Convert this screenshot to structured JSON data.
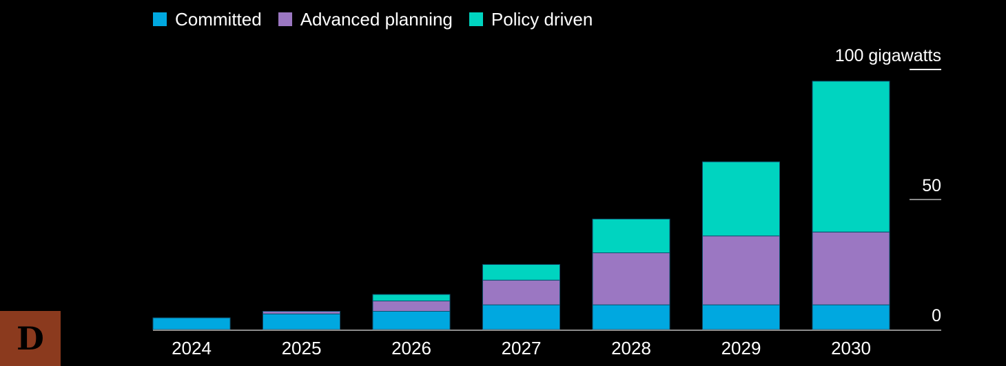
{
  "colors": {
    "background": "#000000",
    "committed": "#00A8E0",
    "advanced_planning": "#9B77C2",
    "policy_driven": "#00D4C0",
    "axis": "#8C8C8C",
    "text": "#FFFFFF"
  },
  "badge_text": "D",
  "chart_data": {
    "type": "bar",
    "stacked": true,
    "categories": [
      "2024",
      "2025",
      "2026",
      "2027",
      "2028",
      "2029",
      "2030"
    ],
    "series": [
      {
        "name": "Committed",
        "values": [
          4.5,
          6,
          7,
          9.5,
          9.5,
          9.5,
          9.5
        ]
      },
      {
        "name": "Advanced planning",
        "values": [
          0,
          1,
          4,
          9.5,
          20,
          26.5,
          28
        ]
      },
      {
        "name": "Policy driven",
        "values": [
          0,
          0,
          2.5,
          6,
          13,
          28.5,
          58
        ]
      }
    ],
    "title": "",
    "xlabel": "",
    "ylabel": "",
    "y_unit_label": "100 gigawatts",
    "y_ticks": [
      "0",
      "50"
    ],
    "ylim": [
      0,
      100
    ],
    "grid": false,
    "legend_position": "top-left"
  }
}
